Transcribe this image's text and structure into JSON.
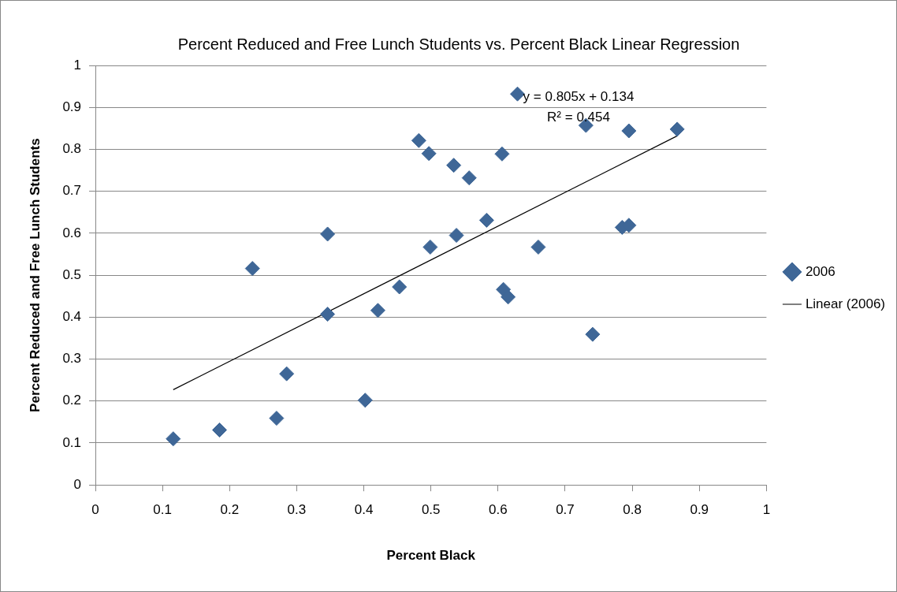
{
  "chart_data": {
    "type": "scatter",
    "title": "Percent Reduced and Free Lunch Students vs. Percent Black Linear Regression",
    "xlabel": "Percent Black",
    "ylabel": "Percent Reduced and Free Lunch Students",
    "xlim": [
      0,
      1
    ],
    "xticks": [
      0,
      0.1,
      0.2,
      0.3,
      0.4,
      0.5,
      0.6,
      0.7,
      0.8,
      0.9,
      1
    ],
    "ylim": [
      0,
      1
    ],
    "yticks": [
      0,
      0.1,
      0.2,
      0.3,
      0.4,
      0.5,
      0.6,
      0.7,
      0.8,
      0.9,
      1
    ],
    "grid": "y",
    "legend": "right",
    "marker": "diamond",
    "series": [
      {
        "name": "2006",
        "color": "#3f6797",
        "x": [
          0.116,
          0.185,
          0.234,
          0.27,
          0.285,
          0.346,
          0.346,
          0.402,
          0.421,
          0.453,
          0.482,
          0.497,
          0.499,
          0.534,
          0.538,
          0.557,
          0.583,
          0.606,
          0.608,
          0.615,
          0.629,
          0.66,
          0.731,
          0.741,
          0.785,
          0.795,
          0.795,
          0.867
        ],
        "values": [
          0.11,
          0.131,
          0.516,
          0.159,
          0.265,
          0.598,
          0.407,
          0.202,
          0.416,
          0.472,
          0.821,
          0.79,
          0.567,
          0.762,
          0.595,
          0.732,
          0.631,
          0.789,
          0.466,
          0.448,
          0.932,
          0.567,
          0.857,
          0.359,
          0.614,
          0.619,
          0.844,
          0.848
        ]
      },
      {
        "name": "Linear (2006)",
        "type": "line",
        "color": "#000000",
        "marker": "none",
        "x": [
          0.116,
          0.867
        ],
        "values": [
          0.227,
          0.832
        ]
      }
    ],
    "annotations": [
      "y = 0.805x + 0.134",
      "R² = 0.454"
    ]
  }
}
